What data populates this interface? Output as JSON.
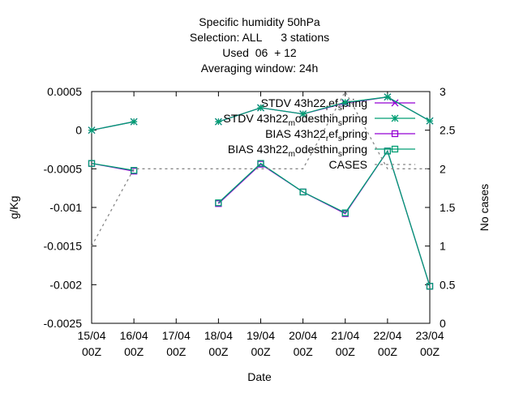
{
  "chart_data": {
    "type": "line",
    "title": [
      "Specific humidity 50hPa",
      "Selection: ALL      3 stations",
      "Used  06  + 12",
      "Averaging window: 24h"
    ],
    "xlabel": "Date",
    "ylabel": "g/Kg",
    "y2label": "No cases",
    "categories": [
      "15/04\n00Z",
      "16/04\n00Z",
      "17/04\n00Z",
      "18/04\n00Z",
      "19/04\n00Z",
      "20/04\n00Z",
      "21/04\n00Z",
      "22/04\n00Z",
      "23/04\n00Z"
    ],
    "ylim": [
      -0.0025,
      0.0005
    ],
    "yticks": [
      -0.0025,
      -0.002,
      -0.0015,
      -0.001,
      -0.0005,
      0,
      0.0005
    ],
    "y2lim": [
      0,
      3
    ],
    "y2ticks": [
      0,
      0.5,
      1,
      1.5,
      2,
      2.5,
      3
    ],
    "legend": "top-right",
    "series": [
      {
        "name": "STDV 43h22_ref_spring",
        "color": "#9400d3",
        "marker": "x",
        "values": [
          0,
          0.00011,
          null,
          0.00011,
          0.00029,
          0.00021,
          0.00035,
          0.00043,
          0.00012
        ]
      },
      {
        "name": "STDV 43h22_modesthin_spring",
        "color": "#009e73",
        "marker": "star",
        "values": [
          0,
          0.00011,
          null,
          0.00011,
          0.00029,
          0.00021,
          0.00036,
          0.00043,
          0.00012
        ]
      },
      {
        "name": "BIAS 43h22_ref_spring",
        "color": "#9400d3",
        "marker": "square",
        "values": [
          -0.00043,
          -0.00053,
          null,
          -0.00095,
          -0.00044,
          -0.0008,
          -0.00108,
          -0.00027,
          -0.00202
        ]
      },
      {
        "name": "BIAS 43h22_modesthin_spring",
        "color": "#009e73",
        "marker": "square",
        "values": [
          -0.00043,
          -0.00052,
          null,
          -0.00094,
          -0.00043,
          -0.0008,
          -0.00107,
          -0.00027,
          -0.00202
        ]
      },
      {
        "name": "CASES",
        "color": "#888888",
        "dash": true,
        "axis": "y2",
        "values": [
          1,
          2,
          2,
          2,
          2,
          2,
          3,
          2,
          2
        ]
      }
    ]
  }
}
